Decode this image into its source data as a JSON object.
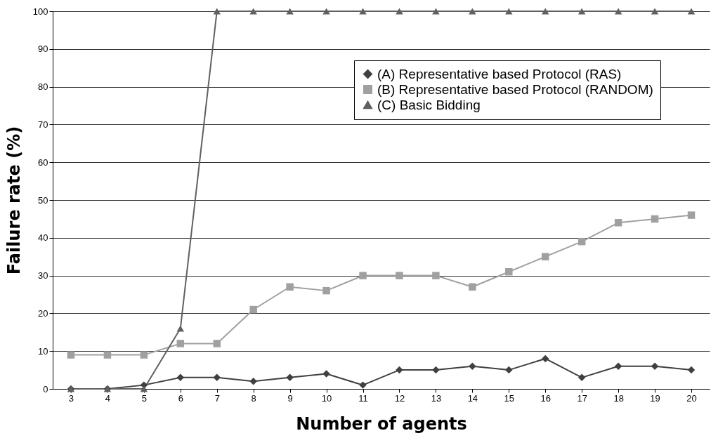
{
  "chart_data": {
    "type": "line",
    "xlabel": "Number of agents",
    "ylabel": "Failure rate (%)",
    "categories": [
      "3",
      "4",
      "5",
      "6",
      "7",
      "8",
      "9",
      "10",
      "11",
      "12",
      "13",
      "14",
      "15",
      "16",
      "17",
      "18",
      "19",
      "20"
    ],
    "ylim": [
      0,
      100
    ],
    "yticks": [
      0,
      10,
      20,
      30,
      40,
      50,
      60,
      70,
      80,
      90,
      100
    ],
    "grid": "y",
    "legend": "top right",
    "line_style": "solid",
    "series": [
      {
        "name": "(A) Representative based Protocol (RAS)",
        "color": "#404040",
        "marker": "diamond",
        "values": [
          0,
          0,
          1,
          3,
          3,
          2,
          3,
          4,
          1,
          5,
          5,
          6,
          5,
          8,
          3,
          6,
          6,
          5
        ]
      },
      {
        "name": "(B) Representative based Protocol (RANDOM)",
        "color": "#a0a0a0",
        "marker": "square",
        "values": [
          9,
          9,
          9,
          12,
          12,
          21,
          27,
          26,
          30,
          30,
          30,
          27,
          31,
          35,
          39,
          44,
          45,
          46
        ]
      },
      {
        "name": "(C) Basic Bidding",
        "color": "#606060",
        "marker": "triangle",
        "values": [
          0,
          0,
          0,
          16,
          100,
          100,
          100,
          100,
          100,
          100,
          100,
          100,
          100,
          100,
          100,
          100,
          100,
          100
        ]
      }
    ]
  }
}
